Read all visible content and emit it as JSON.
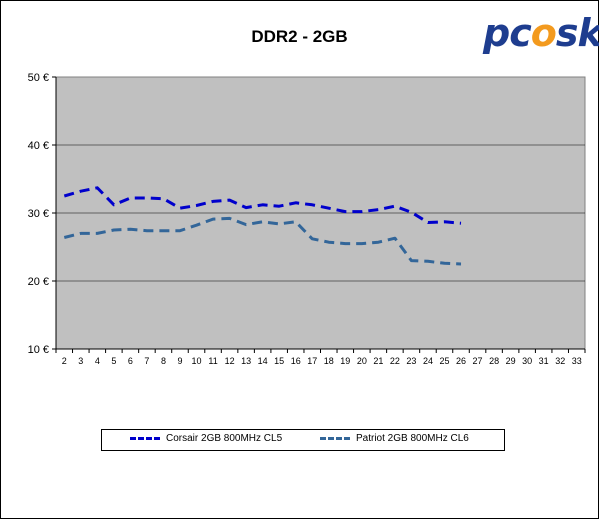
{
  "chart_data": {
    "type": "line",
    "title": "DDR2 - 2GB",
    "x": [
      2,
      3,
      4,
      5,
      6,
      7,
      8,
      9,
      10,
      11,
      12,
      13,
      14,
      15,
      16,
      17,
      18,
      19,
      20,
      21,
      22,
      23,
      24,
      25,
      26,
      27,
      28,
      29,
      30,
      31,
      32,
      33
    ],
    "xlim": [
      2,
      33
    ],
    "ylim": [
      10,
      50
    ],
    "yticks": [
      "10 €",
      "20 €",
      "30 €",
      "40 €",
      "50 €"
    ],
    "ytick_values": [
      10,
      20,
      30,
      40,
      50
    ],
    "grid": true,
    "legend_position": "bottom",
    "series": [
      {
        "name": "Corsair 2GB 800MHz CL5",
        "color": "#0000cc",
        "x": [
          2,
          3,
          4,
          5,
          6,
          7,
          8,
          9,
          10,
          11,
          12,
          13,
          14,
          15,
          16,
          17,
          18,
          19,
          20,
          21,
          22,
          23,
          24,
          25,
          26
        ],
        "values": [
          32.5,
          33.2,
          33.7,
          31.2,
          32.2,
          32.2,
          32.1,
          30.7,
          31.1,
          31.7,
          31.9,
          30.8,
          31.2,
          31.0,
          31.5,
          31.2,
          30.7,
          30.2,
          30.2,
          30.5,
          31.0,
          30.1,
          28.6,
          28.7,
          28.5
        ]
      },
      {
        "name": "Patriot 2GB 800MHz CL6",
        "color": "#336699",
        "x": [
          2,
          3,
          4,
          5,
          6,
          7,
          8,
          9,
          10,
          11,
          12,
          13,
          14,
          15,
          16,
          17,
          18,
          19,
          20,
          21,
          22,
          23,
          24,
          25,
          26
        ],
        "values": [
          26.4,
          27.0,
          27.0,
          27.5,
          27.6,
          27.4,
          27.4,
          27.4,
          28.2,
          29.1,
          29.2,
          28.3,
          28.7,
          28.4,
          28.7,
          26.2,
          25.7,
          25.5,
          25.5,
          25.7,
          26.3,
          23.0,
          22.9,
          22.6,
          22.5
        ]
      }
    ]
  },
  "logo": {
    "prefix": "pc",
    "flame": "o",
    "suffix": "sk"
  }
}
